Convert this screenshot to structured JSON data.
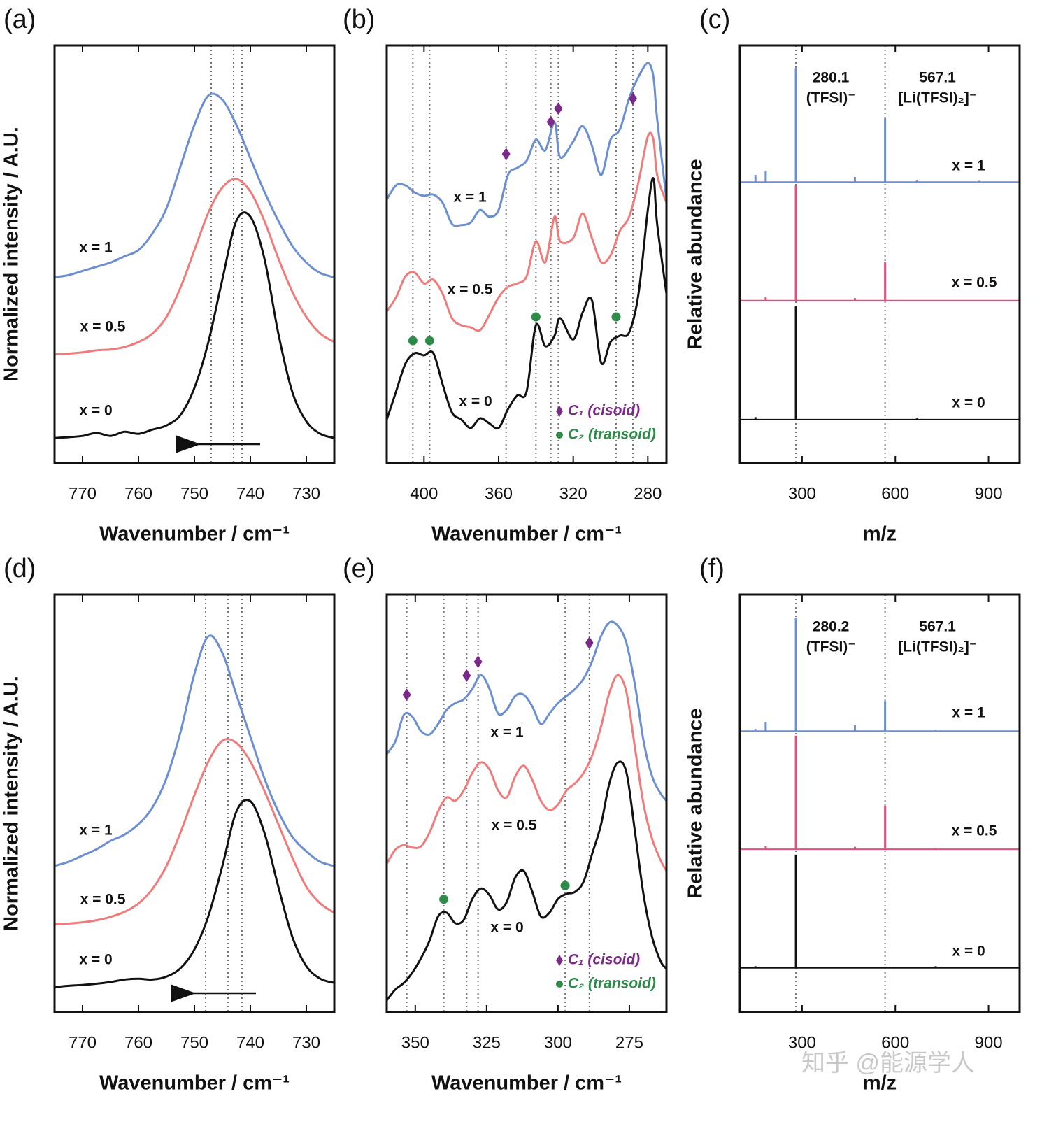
{
  "chart_data": [
    {
      "type": "line",
      "panel_label": "(a)",
      "xlabel": "Wavenumber / cm⁻¹",
      "ylabel": "Normalized intensity / A.U.",
      "xlim": [
        775,
        725
      ],
      "ylim": [
        0,
        10
      ],
      "xticks": [
        770,
        760,
        750,
        740,
        730
      ],
      "vlines": [
        747,
        743,
        741.5
      ],
      "series": [
        {
          "name": "x = 1",
          "color": "#6b8fd0",
          "x": [
            775,
            772.5,
            770,
            767.5,
            765,
            762.5,
            760,
            757.5,
            755,
            752.5,
            750,
            747.5,
            745,
            742.5,
            740,
            737.5,
            735,
            732.5,
            730,
            727.5,
            725
          ],
          "values": [
            4.45,
            4.5,
            4.6,
            4.7,
            4.8,
            4.95,
            5.1,
            5.5,
            6.1,
            7.1,
            8.1,
            8.8,
            8.7,
            8.1,
            7.3,
            6.5,
            5.8,
            5.2,
            4.8,
            4.55,
            4.45
          ]
        },
        {
          "name": "x = 0.5",
          "color": "#f07b7b",
          "x": [
            775,
            772.5,
            770,
            767.5,
            765,
            762.5,
            760,
            757.5,
            755,
            752.5,
            750,
            747.5,
            745,
            742.5,
            740,
            737.5,
            735,
            732.5,
            730,
            727.5,
            725
          ],
          "values": [
            2.6,
            2.62,
            2.65,
            2.7,
            2.72,
            2.78,
            2.9,
            3.1,
            3.5,
            4.2,
            5.1,
            6.0,
            6.6,
            6.8,
            6.5,
            5.8,
            4.9,
            4.1,
            3.5,
            3.1,
            2.9
          ]
        },
        {
          "name": "x = 0",
          "color": "#111111",
          "x": [
            775,
            772.5,
            770,
            767.5,
            765,
            762.5,
            760,
            757.5,
            755,
            752.5,
            750,
            747.5,
            745,
            742.5,
            740,
            737.5,
            735,
            732.5,
            730,
            727.5,
            725
          ],
          "values": [
            0.6,
            0.62,
            0.65,
            0.72,
            0.65,
            0.75,
            0.7,
            0.8,
            0.9,
            1.15,
            1.8,
            2.9,
            4.4,
            5.8,
            5.9,
            4.9,
            3.1,
            1.7,
            1.0,
            0.7,
            0.6
          ]
        }
      ]
    },
    {
      "type": "line",
      "panel_label": "(b)",
      "xlabel": "Wavenumber / cm⁻¹",
      "xlim": [
        420,
        270
      ],
      "ylim": [
        0,
        10
      ],
      "xticks": [
        400,
        360,
        320,
        280
      ],
      "vlines": [
        406,
        397,
        356,
        340,
        332,
        328,
        297,
        288
      ],
      "series": [
        {
          "name": "x = 1",
          "color": "#6b8fd0",
          "x": [
            420,
            415,
            410,
            405,
            400,
            395,
            390,
            385,
            380,
            375,
            370,
            365,
            360,
            355,
            350,
            345,
            340,
            335,
            330,
            327,
            320,
            315,
            310,
            305,
            300,
            295,
            290,
            285,
            280,
            277,
            275,
            270
          ],
          "values": [
            6.31,
            6.65,
            6.65,
            6.48,
            6.4,
            6.43,
            6.23,
            5.73,
            5.7,
            5.76,
            6.06,
            5.9,
            6.06,
            6.9,
            7.07,
            7.24,
            7.74,
            7.49,
            8.16,
            7.32,
            7.7,
            8.07,
            7.6,
            6.9,
            7.74,
            7.99,
            8.74,
            9.25,
            9.58,
            9.25,
            8.24,
            6.31
          ]
        },
        {
          "name": "x = 0.5",
          "color": "#f07b7b",
          "x": [
            420,
            415,
            410,
            405,
            400,
            395,
            390,
            385,
            380,
            375,
            370,
            365,
            360,
            355,
            350,
            345,
            340,
            335,
            330,
            327,
            320,
            315,
            310,
            305,
            300,
            295,
            290,
            285,
            280,
            277,
            275,
            270
          ],
          "values": [
            3.63,
            3.97,
            4.47,
            4.56,
            4.3,
            4.39,
            4.05,
            3.47,
            3.3,
            3.25,
            3.18,
            3.55,
            3.97,
            4.22,
            4.3,
            4.47,
            5.31,
            4.81,
            5.9,
            5.31,
            5.39,
            5.98,
            5.39,
            4.81,
            4.97,
            5.56,
            5.9,
            6.73,
            7.82,
            7.74,
            6.9,
            6.23
          ]
        },
        {
          "name": "x = 0",
          "color": "#111111",
          "x": [
            420,
            415,
            410,
            405,
            400,
            395,
            390,
            385,
            380,
            375,
            370,
            365,
            360,
            355,
            350,
            345,
            340,
            335,
            330,
            327,
            320,
            315,
            310,
            305,
            300,
            295,
            290,
            285,
            280,
            277,
            275,
            270
          ],
          "values": [
            1.04,
            1.71,
            2.38,
            2.63,
            2.58,
            2.63,
            1.88,
            1.21,
            1.04,
            0.84,
            1.07,
            0.95,
            0.84,
            1.29,
            1.62,
            1.71,
            3.3,
            2.8,
            3.05,
            3.47,
            2.96,
            3.6,
            3.9,
            2.4,
            2.9,
            3.05,
            3.13,
            4.05,
            6.06,
            6.82,
            5.73,
            4.05
          ]
        }
      ],
      "marker_series": [
        {
          "name": "C₁ (cisoid)",
          "color": "#7b2a8a",
          "shape": "diamond",
          "x": [
            356,
            332,
            328,
            288
          ],
          "values": [
            7.4,
            8.17,
            8.49,
            8.73
          ]
        },
        {
          "name": "C₂ (transoid)",
          "color": "#2e8b4a",
          "shape": "circle",
          "x": [
            406,
            397,
            340,
            297
          ],
          "values": [
            2.93,
            2.93,
            3.5,
            3.5
          ]
        }
      ]
    },
    {
      "type": "stem",
      "panel_label": "(c)",
      "xlabel": "m/z",
      "ylabel": "Relative abundance",
      "xlim": [
        100,
        1000
      ],
      "ylim": [
        0,
        10
      ],
      "xticks": [
        300,
        600,
        900
      ],
      "vlines": [
        280.1,
        567.1
      ],
      "annotations": [
        {
          "x": 280.1,
          "label": "280.1",
          "ion": "(TFSI)⁻"
        },
        {
          "x": 567.1,
          "label": "567.1",
          "ion": "[Li(TFSI)₂]⁻"
        }
      ],
      "series": [
        {
          "name": "x = 1",
          "color": "#6b8fd0",
          "baseline": 6.73,
          "x": [
            150,
            183,
            280.1,
            470,
            567.1,
            670,
            870
          ],
          "values": [
            6.9,
            7.0,
            9.46,
            6.85,
            8.26,
            6.78,
            6.76
          ]
        },
        {
          "name": "x = 0.5",
          "color": "#e0507a",
          "baseline": 3.89,
          "x": [
            183,
            280.1,
            470,
            567.1
          ],
          "values": [
            3.97,
            6.65,
            3.95,
            4.81
          ]
        },
        {
          "name": "x = 0",
          "color": "#111111",
          "baseline": 1.04,
          "x": [
            150,
            280.1,
            670
          ],
          "values": [
            1.1,
            3.75,
            1.07
          ]
        }
      ]
    },
    {
      "type": "line",
      "panel_label": "(d)",
      "xlabel": "Wavenumber / cm⁻¹",
      "ylabel": "Normalized intensity / A.U.",
      "xlim": [
        775,
        725
      ],
      "ylim": [
        0,
        10
      ],
      "xticks": [
        770,
        760,
        750,
        740,
        730
      ],
      "vlines": [
        748,
        744,
        741.5
      ],
      "series": [
        {
          "name": "x = 1",
          "color": "#6b8fd0",
          "x": [
            775,
            772.5,
            770,
            767.5,
            765,
            762.5,
            760,
            757.5,
            755,
            752.5,
            750,
            747.5,
            745,
            742.5,
            740,
            737.5,
            735,
            732.5,
            730,
            727.5,
            725
          ],
          "values": [
            3.5,
            3.6,
            3.75,
            3.9,
            4.1,
            4.25,
            4.5,
            4.9,
            5.6,
            6.7,
            8.1,
            9.0,
            8.6,
            7.6,
            6.6,
            5.6,
            4.8,
            4.2,
            3.85,
            3.6,
            3.5
          ]
        },
        {
          "name": "x = 0.5",
          "color": "#f07b7b",
          "x": [
            775,
            772.5,
            770,
            767.5,
            765,
            762.5,
            760,
            757.5,
            755,
            752.5,
            750,
            747.5,
            745,
            742.5,
            740,
            737.5,
            735,
            732.5,
            730,
            727.5,
            725
          ],
          "values": [
            2.1,
            2.12,
            2.15,
            2.2,
            2.28,
            2.4,
            2.6,
            2.95,
            3.5,
            4.3,
            5.2,
            6.0,
            6.5,
            6.45,
            6.0,
            5.3,
            4.5,
            3.7,
            3.0,
            2.6,
            2.38
          ]
        },
        {
          "name": "x = 0",
          "color": "#111111",
          "x": [
            775,
            772.5,
            770,
            767.5,
            765,
            762.5,
            760,
            757.5,
            755,
            752.5,
            750,
            747.5,
            745,
            742.5,
            740,
            737.5,
            735,
            732.5,
            730,
            727.5,
            725
          ],
          "values": [
            0.6,
            0.63,
            0.65,
            0.68,
            0.72,
            0.78,
            0.8,
            0.78,
            0.85,
            1.05,
            1.5,
            2.3,
            3.5,
            4.8,
            5.05,
            4.3,
            3.0,
            1.8,
            1.1,
            0.8,
            0.7
          ]
        }
      ]
    },
    {
      "type": "line",
      "panel_label": "(e)",
      "xlabel": "Wavenumber / cm⁻¹",
      "xlim": [
        360,
        262
      ],
      "ylim": [
        0,
        10
      ],
      "xticks": [
        350,
        325,
        300,
        275
      ],
      "vlines": [
        353,
        340,
        332,
        328,
        297.5,
        289
      ],
      "series": [
        {
          "name": "x = 1",
          "color": "#6b8fd0",
          "x": [
            360,
            357,
            354,
            351,
            348,
            345,
            342,
            339,
            336,
            333,
            330,
            327,
            324,
            321,
            318,
            315,
            312,
            309,
            306,
            303,
            300,
            297,
            294,
            291,
            288,
            285,
            282,
            279,
            276,
            273,
            270,
            267,
            264,
            262
          ],
          "values": [
            6.18,
            6.48,
            7.12,
            7.07,
            6.73,
            6.65,
            6.9,
            7.24,
            7.4,
            7.49,
            7.74,
            8.07,
            7.74,
            7.15,
            7.24,
            7.57,
            7.6,
            7.32,
            6.9,
            7.15,
            7.4,
            7.57,
            7.74,
            7.99,
            8.41,
            8.99,
            9.33,
            9.25,
            8.83,
            7.82,
            6.48,
            5.64,
            5.23,
            5.06
          ]
        },
        {
          "name": "x = 0.5",
          "color": "#f07b7b",
          "x": [
            360,
            357,
            354,
            351,
            348,
            345,
            342,
            339,
            336,
            333,
            330,
            327,
            324,
            321,
            318,
            315,
            312,
            309,
            306,
            303,
            300,
            297,
            294,
            291,
            288,
            285,
            282,
            279,
            276,
            273,
            270,
            267,
            264,
            262
          ],
          "values": [
            3.55,
            3.89,
            4.0,
            3.94,
            3.97,
            4.3,
            4.81,
            5.14,
            5.06,
            5.31,
            5.73,
            5.98,
            5.81,
            5.31,
            5.14,
            5.64,
            5.9,
            5.56,
            5.06,
            4.84,
            4.97,
            5.31,
            5.48,
            5.73,
            6.15,
            6.82,
            7.65,
            8.07,
            7.65,
            6.31,
            4.97,
            4.14,
            3.63,
            3.38
          ]
        },
        {
          "name": "x = 0",
          "color": "#111111",
          "x": [
            360,
            357,
            354,
            351,
            348,
            345,
            342,
            339,
            336,
            333,
            330,
            327,
            324,
            321,
            318,
            315,
            312,
            309,
            306,
            303,
            300,
            297,
            294,
            291,
            288,
            285,
            282,
            279,
            276,
            273,
            270,
            267,
            264,
            262
          ],
          "values": [
            0.28,
            0.54,
            0.7,
            0.95,
            1.29,
            1.71,
            2.29,
            2.38,
            2.13,
            2.21,
            2.71,
            2.96,
            2.8,
            2.46,
            2.63,
            3.22,
            3.38,
            2.88,
            2.29,
            2.38,
            2.71,
            2.83,
            2.88,
            3.13,
            3.8,
            4.47,
            5.48,
            5.98,
            5.73,
            4.3,
            2.8,
            1.79,
            1.21,
            1.04
          ]
        }
      ],
      "marker_series": [
        {
          "name": "C₁ (cisoid)",
          "color": "#7b2a8a",
          "shape": "diamond",
          "x": [
            353,
            332,
            328,
            289
          ],
          "values": [
            7.6,
            8.06,
            8.39,
            8.84
          ]
        },
        {
          "name": "C₂ (transoid)",
          "color": "#2e8b4a",
          "shape": "circle",
          "x": [
            340,
            297.5
          ],
          "values": [
            2.7,
            3.03
          ]
        }
      ]
    },
    {
      "type": "stem",
      "panel_label": "(f)",
      "xlabel": "m/z",
      "ylabel": "Relative abundance",
      "xlim": [
        100,
        1000
      ],
      "ylim": [
        0,
        10
      ],
      "xticks": [
        300,
        600,
        900
      ],
      "vlines": [
        280.2,
        567.1
      ],
      "annotations": [
        {
          "x": 280.2,
          "label": "280.2",
          "ion": "(TFSI)⁻"
        },
        {
          "x": 567.1,
          "label": "567.1",
          "ion": "[Li(TFSI)₂]⁻"
        }
      ],
      "series": [
        {
          "name": "x = 1",
          "color": "#6b8fd0",
          "baseline": 6.73,
          "x": [
            150,
            183,
            280.2,
            470,
            567.1,
            730
          ],
          "values": [
            6.78,
            6.95,
            9.45,
            6.87,
            7.45,
            6.76
          ]
        },
        {
          "name": "x = 0.5",
          "color": "#e0507a",
          "baseline": 3.9,
          "x": [
            183,
            280.2,
            470,
            567.1,
            730
          ],
          "values": [
            3.98,
            6.62,
            3.96,
            4.94,
            3.93
          ]
        },
        {
          "name": "x = 0",
          "color": "#111111",
          "baseline": 1.06,
          "x": [
            150,
            280.2,
            730
          ],
          "values": [
            1.1,
            3.77,
            1.1
          ]
        }
      ]
    }
  ],
  "watermark": "知乎 @能源学人"
}
